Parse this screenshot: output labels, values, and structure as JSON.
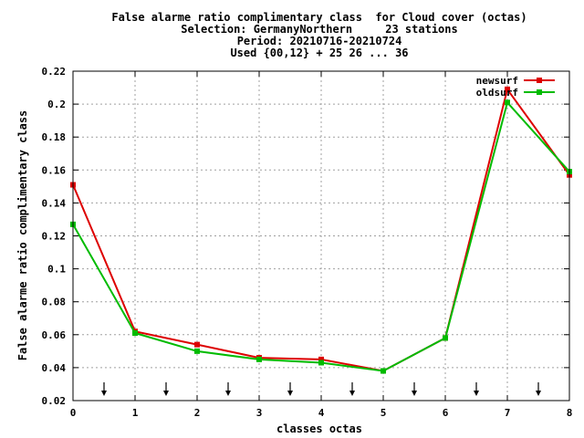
{
  "title_lines": [
    "False alarme ratio complimentary class  for Cloud cover (octas)",
    "Selection: GermanyNorthern     23 stations",
    "Period: 20210716-20210724",
    "Used {00,12} + 25 26 ... 36"
  ],
  "chart_data": {
    "type": "line",
    "xlabel": "classes octas",
    "ylabel": "False alarme ratio complimentary class",
    "xlim": [
      0,
      8
    ],
    "ylim": [
      0.02,
      0.22
    ],
    "x_ticks": [
      0,
      1,
      2,
      3,
      4,
      5,
      6,
      7,
      8
    ],
    "y_ticks": [
      0.02,
      0.04,
      0.06,
      0.08,
      0.1,
      0.12,
      0.14,
      0.16,
      0.18,
      0.2,
      0.22
    ],
    "x_tick_labels": [
      "0",
      "1",
      "2",
      "3",
      "4",
      "5",
      "6",
      "7",
      "8"
    ],
    "y_tick_labels": [
      "0.02",
      "0.04",
      "0.06",
      "0.08",
      "0.1",
      "0.12",
      "0.14",
      "0.16",
      "0.18",
      "0.2",
      "0.22"
    ],
    "grid": true,
    "legend_position": "top-right",
    "x": [
      0,
      1,
      2,
      3,
      4,
      5,
      6,
      7,
      8
    ],
    "series": [
      {
        "name": "newsurf",
        "color": "#dd0000",
        "values": [
          0.151,
          0.062,
          0.054,
          0.046,
          0.045,
          0.038,
          0.058,
          0.209,
          0.157
        ]
      },
      {
        "name": "oldsurf",
        "color": "#00bb00",
        "values": [
          0.127,
          0.061,
          0.05,
          0.045,
          0.043,
          0.038,
          0.058,
          0.201,
          0.159
        ]
      }
    ],
    "arrow_markers_x": [
      0.5,
      1.5,
      2.5,
      3.5,
      4.5,
      5.5,
      6.5,
      7.5
    ]
  }
}
